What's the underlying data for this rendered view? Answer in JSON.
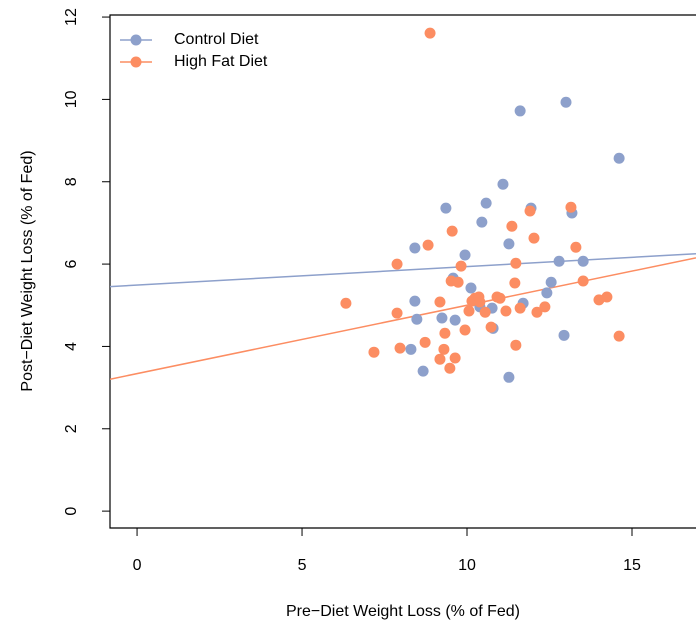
{
  "chart_data": {
    "type": "scatter",
    "x_label": "Pre−Diet Weight Loss (% of Fed)",
    "y_label": "Post−Diet Weight Loss (% of Fed)",
    "xlim": [
      -0.82,
      16.94
    ],
    "ylim": [
      -0.41,
      12.05
    ],
    "xticks": [
      0,
      5,
      10,
      15
    ],
    "yticks": [
      0,
      2,
      4,
      6,
      8,
      10,
      12
    ],
    "legend": "top-left",
    "series": [
      {
        "name": "Control Diet",
        "color": "#8da0cb",
        "fit": {
          "slope": 0.045,
          "intercept": 5.49
        },
        "x": [
          8.42,
          9.36,
          10.58,
          11.09,
          10.45,
          11.94,
          11.61,
          13.0,
          14.61,
          13.18,
          11.27,
          9.94,
          9.58,
          12.79,
          13.52,
          12.55,
          12.42,
          10.12,
          8.42,
          8.48,
          9.24,
          9.64,
          10.39,
          10.76,
          10.79,
          11.7,
          12.94,
          8.3,
          8.67,
          11.27
        ],
        "values": [
          6.39,
          7.36,
          7.48,
          7.94,
          7.02,
          7.36,
          9.72,
          9.93,
          8.57,
          7.24,
          6.49,
          6.22,
          5.66,
          6.07,
          6.07,
          5.56,
          5.3,
          5.42,
          5.1,
          4.66,
          4.69,
          4.64,
          4.96,
          4.93,
          4.44,
          5.05,
          4.27,
          3.93,
          3.4,
          3.25
        ]
      },
      {
        "name": "High Fat Diet",
        "color": "#fc8d62",
        "fit": {
          "slope": 0.166,
          "intercept": 3.34
        },
        "x": [
          8.88,
          8.82,
          7.88,
          9.55,
          9.82,
          11.36,
          11.91,
          12.03,
          13.15,
          13.3,
          11.48,
          9.52,
          9.73,
          11.45,
          13.52,
          6.33,
          9.18,
          10.15,
          10.24,
          10.36,
          10.39,
          10.55,
          10.06,
          10.91,
          11.0,
          11.18,
          11.61,
          12.12,
          12.36,
          14.0,
          14.24,
          14.61,
          7.88,
          9.94,
          10.73,
          9.33,
          8.73,
          7.97,
          7.18,
          9.3,
          9.18,
          9.64,
          9.48,
          11.48
        ],
        "values": [
          11.61,
          6.46,
          6.0,
          6.8,
          5.95,
          6.92,
          7.29,
          6.63,
          7.38,
          6.41,
          6.02,
          5.59,
          5.56,
          5.54,
          5.59,
          5.05,
          5.08,
          5.1,
          5.17,
          5.2,
          5.08,
          4.83,
          4.86,
          5.2,
          5.17,
          4.86,
          4.93,
          4.83,
          4.96,
          5.13,
          5.2,
          4.25,
          4.81,
          4.4,
          4.47,
          4.32,
          4.1,
          3.96,
          3.86,
          3.93,
          3.69,
          3.72,
          3.47,
          4.03
        ]
      }
    ]
  }
}
